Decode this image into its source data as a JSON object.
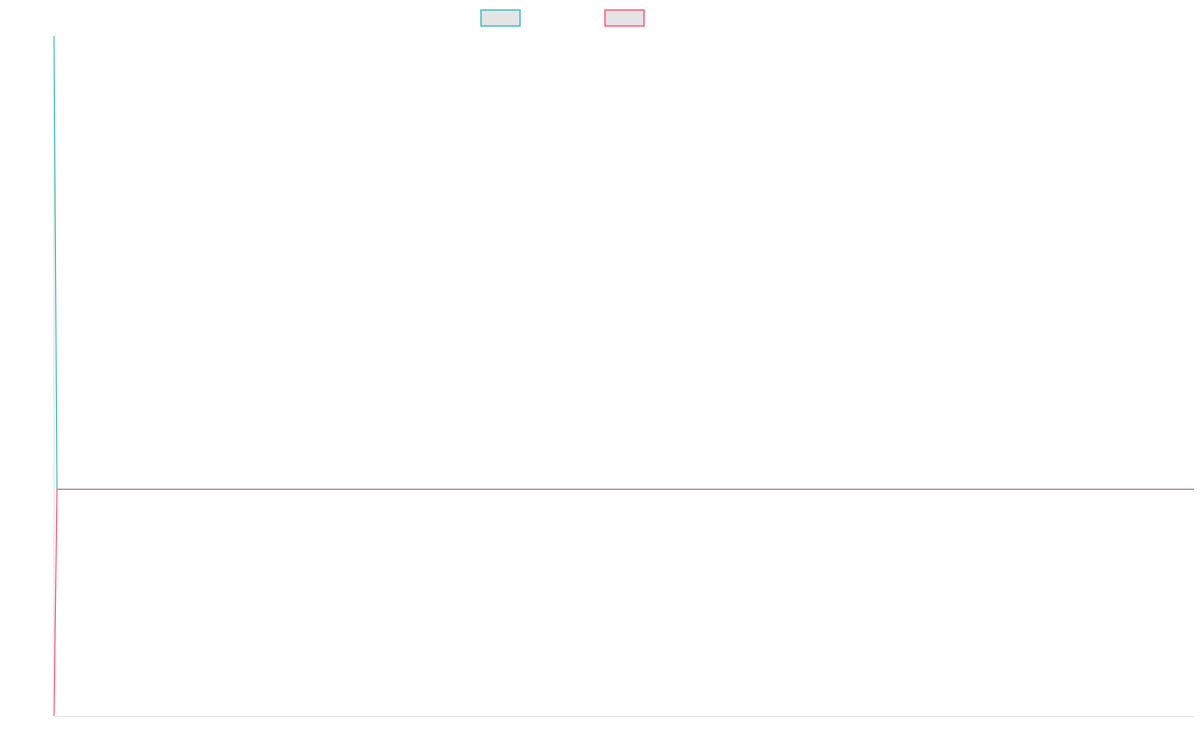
{
  "chart_data": {
    "type": "line",
    "title": "",
    "xlabel": "",
    "ylabel": "",
    "x": [
      0,
      1,
      380
    ],
    "xlim": [
      0,
      380
    ],
    "ylim": [
      0,
      3
    ],
    "grid": false,
    "legend": "top-center",
    "series": [
      {
        "values": [
          3,
          1,
          1
        ],
        "color": "#4bc0c0"
      },
      {
        "values": [
          0,
          1,
          1
        ],
        "color": "#ff6384"
      }
    ],
    "legend_box_fill": "#e5e5e5",
    "axis_color": "#e2e2e2"
  }
}
